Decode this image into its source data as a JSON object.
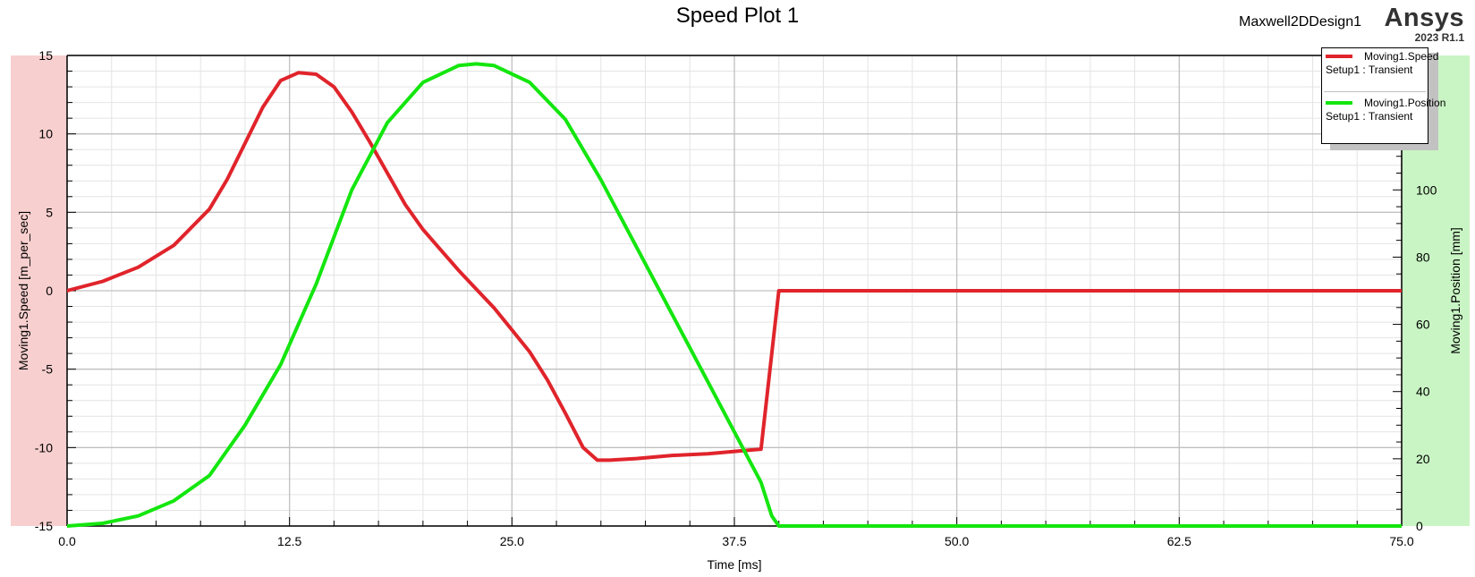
{
  "header": {
    "title": "Speed Plot 1",
    "design_name": "Maxwell2DDesign1",
    "brand": "Ansys",
    "version": "2023 R1.1"
  },
  "legend": {
    "entries": [
      {
        "name": "Moving1.Speed",
        "setup": "Setup1 : Transient",
        "color": "#e0242b"
      },
      {
        "name": "Moving1.Position",
        "setup": "Setup1 : Transient",
        "color": "#14e60f"
      }
    ]
  },
  "colors": {
    "left_axis_band": "#f8cfcf",
    "right_axis_band": "#c9f5c4",
    "speed": "#e0242b",
    "position": "#14e60f",
    "grid_major": "#c0c0c0",
    "grid_minor": "#e4e4e4"
  },
  "chart_data": {
    "type": "line",
    "title": "Speed Plot 1",
    "xlabel": "Time [ms]",
    "ylabel": "Moving1.Speed [m_per_sec]",
    "y2label": "Moving1.Position [mm]",
    "xlim": [
      0,
      75
    ],
    "ylim": [
      -15,
      15
    ],
    "y2lim": [
      0,
      140
    ],
    "xticks": [
      "0.0",
      "12.5",
      "25.0",
      "37.5",
      "50.0",
      "62.5",
      "75.0"
    ],
    "yticks": [
      "15",
      "10",
      "5",
      "0",
      "-5",
      "-10",
      "-15"
    ],
    "y2ticks": [
      "100",
      "80",
      "60",
      "40",
      "20",
      "0"
    ],
    "grid": true,
    "legend_position": "top-right",
    "series": [
      {
        "name": "Moving1.Speed",
        "axis": "left",
        "color": "#e0242b",
        "x": [
          0,
          2,
          4,
          6,
          8,
          9,
          10,
          11,
          12,
          13,
          14,
          15,
          16,
          17,
          18,
          19,
          20,
          21,
          22,
          23,
          24,
          25,
          26,
          27,
          28,
          29,
          29.8,
          30.5,
          32,
          34,
          36,
          38,
          39,
          40,
          40.2,
          45,
          55,
          65,
          75
        ],
        "y": [
          0,
          0.6,
          1.5,
          2.9,
          5.2,
          7.1,
          9.4,
          11.7,
          13.4,
          13.9,
          13.8,
          13,
          11.4,
          9.5,
          7.5,
          5.5,
          3.9,
          2.6,
          1.3,
          0.1,
          -1.1,
          -2.5,
          -3.9,
          -5.7,
          -7.8,
          -10,
          -10.8,
          -10.8,
          -10.7,
          -10.5,
          -10.4,
          -10.2,
          -10.1,
          0,
          0,
          0,
          0,
          0,
          0
        ]
      },
      {
        "name": "Moving1.Position",
        "axis": "right",
        "color": "#14e60f",
        "x": [
          0,
          2,
          4,
          6,
          8,
          10,
          12,
          13,
          14,
          16,
          18,
          20,
          22,
          23,
          24,
          26,
          28,
          30,
          32,
          34,
          36,
          38,
          39,
          39.6,
          40,
          45,
          55,
          65,
          75
        ],
        "y": [
          0,
          0.8,
          3,
          7.5,
          15,
          30,
          48,
          60,
          72,
          100,
          120,
          132,
          137,
          137.5,
          137,
          132,
          121,
          103,
          83,
          63,
          43,
          23,
          13,
          3,
          0,
          0,
          0,
          0,
          0
        ]
      }
    ]
  }
}
